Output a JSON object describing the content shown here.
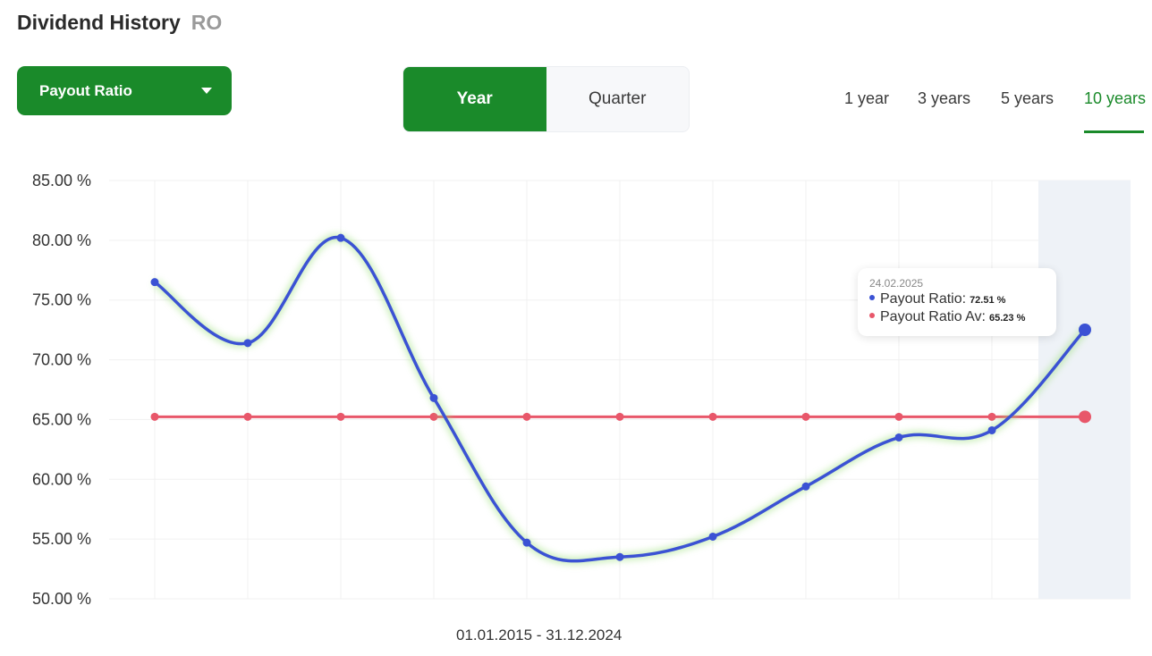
{
  "header": {
    "title": "Dividend History",
    "ticker": "RO"
  },
  "metric_select": {
    "selected": "Payout Ratio"
  },
  "period_toggle": {
    "options": [
      "Year",
      "Quarter"
    ],
    "active": "Year"
  },
  "ranges": {
    "items": [
      "1 year",
      "3 years",
      "5 years",
      "10 years"
    ],
    "active": "10 years"
  },
  "colors": {
    "accent": "#1a8a2a",
    "series_main": "#3b52d4",
    "series_avg": "#e8576a"
  },
  "tooltip": {
    "date": "24.02.2025",
    "rows": [
      {
        "label": "Payout Ratio:",
        "value": "72.51 %"
      },
      {
        "label": "Payout Ratio Av:",
        "value": "65.23 %"
      }
    ]
  },
  "chart_data": {
    "type": "line",
    "xlabel": "01.01.2015 - 31.12.2024",
    "ylabel": "",
    "ylim": [
      50,
      85
    ],
    "y_ticks": [
      "85.00 %",
      "80.00 %",
      "75.00 %",
      "70.00 %",
      "65.00 %",
      "60.00 %",
      "55.00 %",
      "50.00 %"
    ],
    "grid": true,
    "highlighted_index": 10,
    "series": [
      {
        "name": "Payout Ratio",
        "values": [
          76.5,
          71.4,
          80.2,
          66.8,
          54.7,
          53.5,
          55.2,
          59.4,
          63.5,
          64.1,
          72.51
        ]
      },
      {
        "name": "Payout Ratio Av",
        "values": [
          65.23,
          65.23,
          65.23,
          65.23,
          65.23,
          65.23,
          65.23,
          65.23,
          65.23,
          65.23,
          65.23
        ]
      }
    ]
  }
}
